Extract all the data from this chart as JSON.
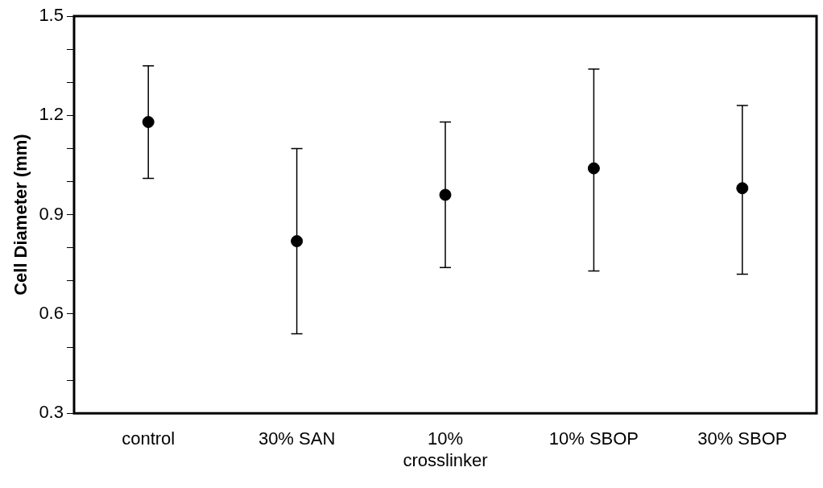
{
  "chart_data": {
    "type": "scatter",
    "ylabel": "Cell Diameter (mm)",
    "categories": [
      "control",
      "30% SAN",
      "10% crosslinker",
      "10% SBOP",
      "30% SBOP"
    ],
    "values": [
      1.18,
      0.82,
      0.96,
      1.04,
      0.98
    ],
    "errors": [
      [
        1.01,
        1.35
      ],
      [
        0.54,
        1.1
      ],
      [
        0.74,
        1.18
      ],
      [
        0.73,
        1.34
      ],
      [
        0.72,
        1.23
      ]
    ],
    "color": "#000000",
    "marker": "circle",
    "grid": false,
    "legend": false,
    "ylim": [
      0.3,
      1.5
    ],
    "yticks": [
      0.3,
      {
        "value": 0.4,
        "label": null
      },
      {
        "value": 0.5,
        "label": null
      },
      0.6,
      {
        "value": 0.7,
        "label": null
      },
      {
        "value": 0.8,
        "label": null
      },
      0.9,
      {
        "value": 1.0,
        "label": null
      },
      {
        "value": 1.1,
        "label": null
      },
      1.2,
      {
        "value": 1.3,
        "label": null
      },
      {
        "value": 1.4,
        "label": null
      },
      1.5
    ]
  }
}
